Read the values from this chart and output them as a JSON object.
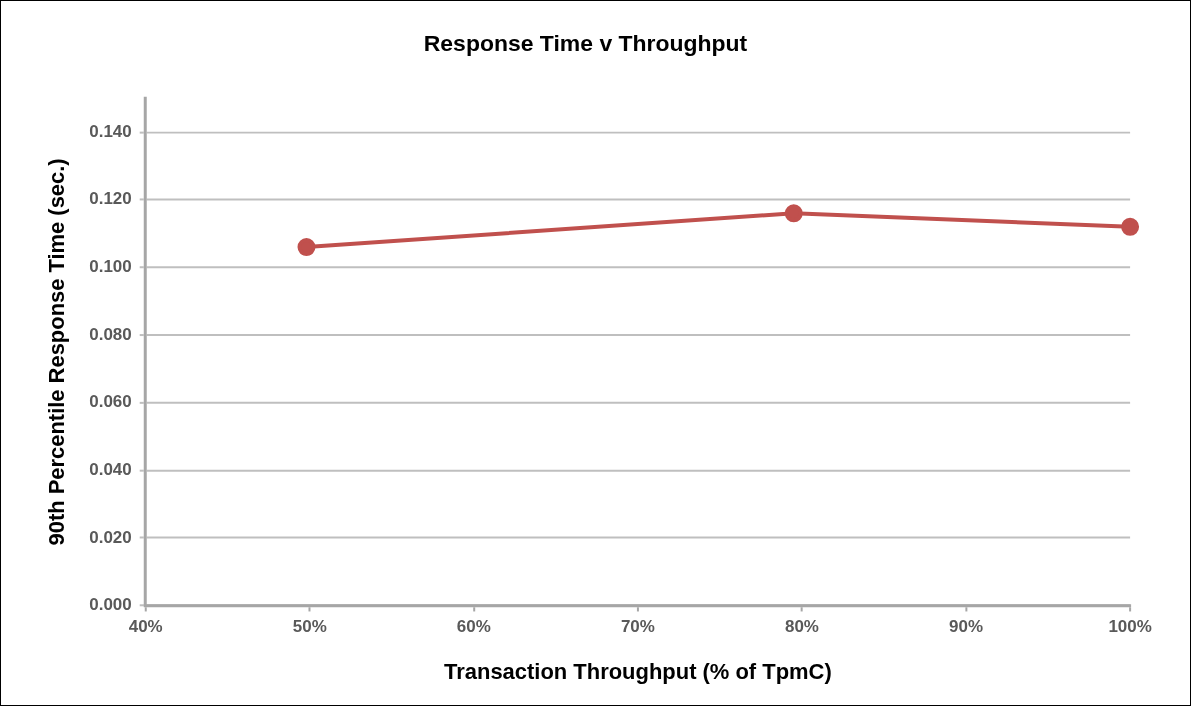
{
  "chart_data": {
    "type": "line",
    "title": "Response Time v Throughput",
    "xlabel": "Transaction Throughput (% of TpmC)",
    "ylabel": "90th Percentile Response Time (sec.)",
    "x": [
      49.8,
      79.5,
      100
    ],
    "series": [
      {
        "color": "#c0504d",
        "values": [
          0.106,
          0.116,
          0.112
        ]
      }
    ],
    "xlim": [
      40,
      100
    ],
    "xticks": [
      {
        "value": 40,
        "label": "40%"
      },
      {
        "value": 50,
        "label": "50%"
      },
      {
        "value": 60,
        "label": "60%"
      },
      {
        "value": 70,
        "label": "70%"
      },
      {
        "value": 80,
        "label": "80%"
      },
      {
        "value": 90,
        "label": "90%"
      },
      {
        "value": 100,
        "label": "100%"
      }
    ],
    "ylim": [
      0,
      0.15
    ],
    "yticks": [
      {
        "value": 0,
        "label": "0.000"
      },
      {
        "value": 0.02,
        "label": "0.020"
      },
      {
        "value": 0.04,
        "label": "0.040"
      },
      {
        "value": 0.06,
        "label": "0.060"
      },
      {
        "value": 0.08,
        "label": "0.080"
      },
      {
        "value": 0.1,
        "label": "0.100"
      },
      {
        "value": 0.12,
        "label": "0.120"
      },
      {
        "value": 0.14,
        "label": "0.140"
      }
    ],
    "grid": "y",
    "legend": false,
    "marker": "circle",
    "line_style": "solid"
  }
}
